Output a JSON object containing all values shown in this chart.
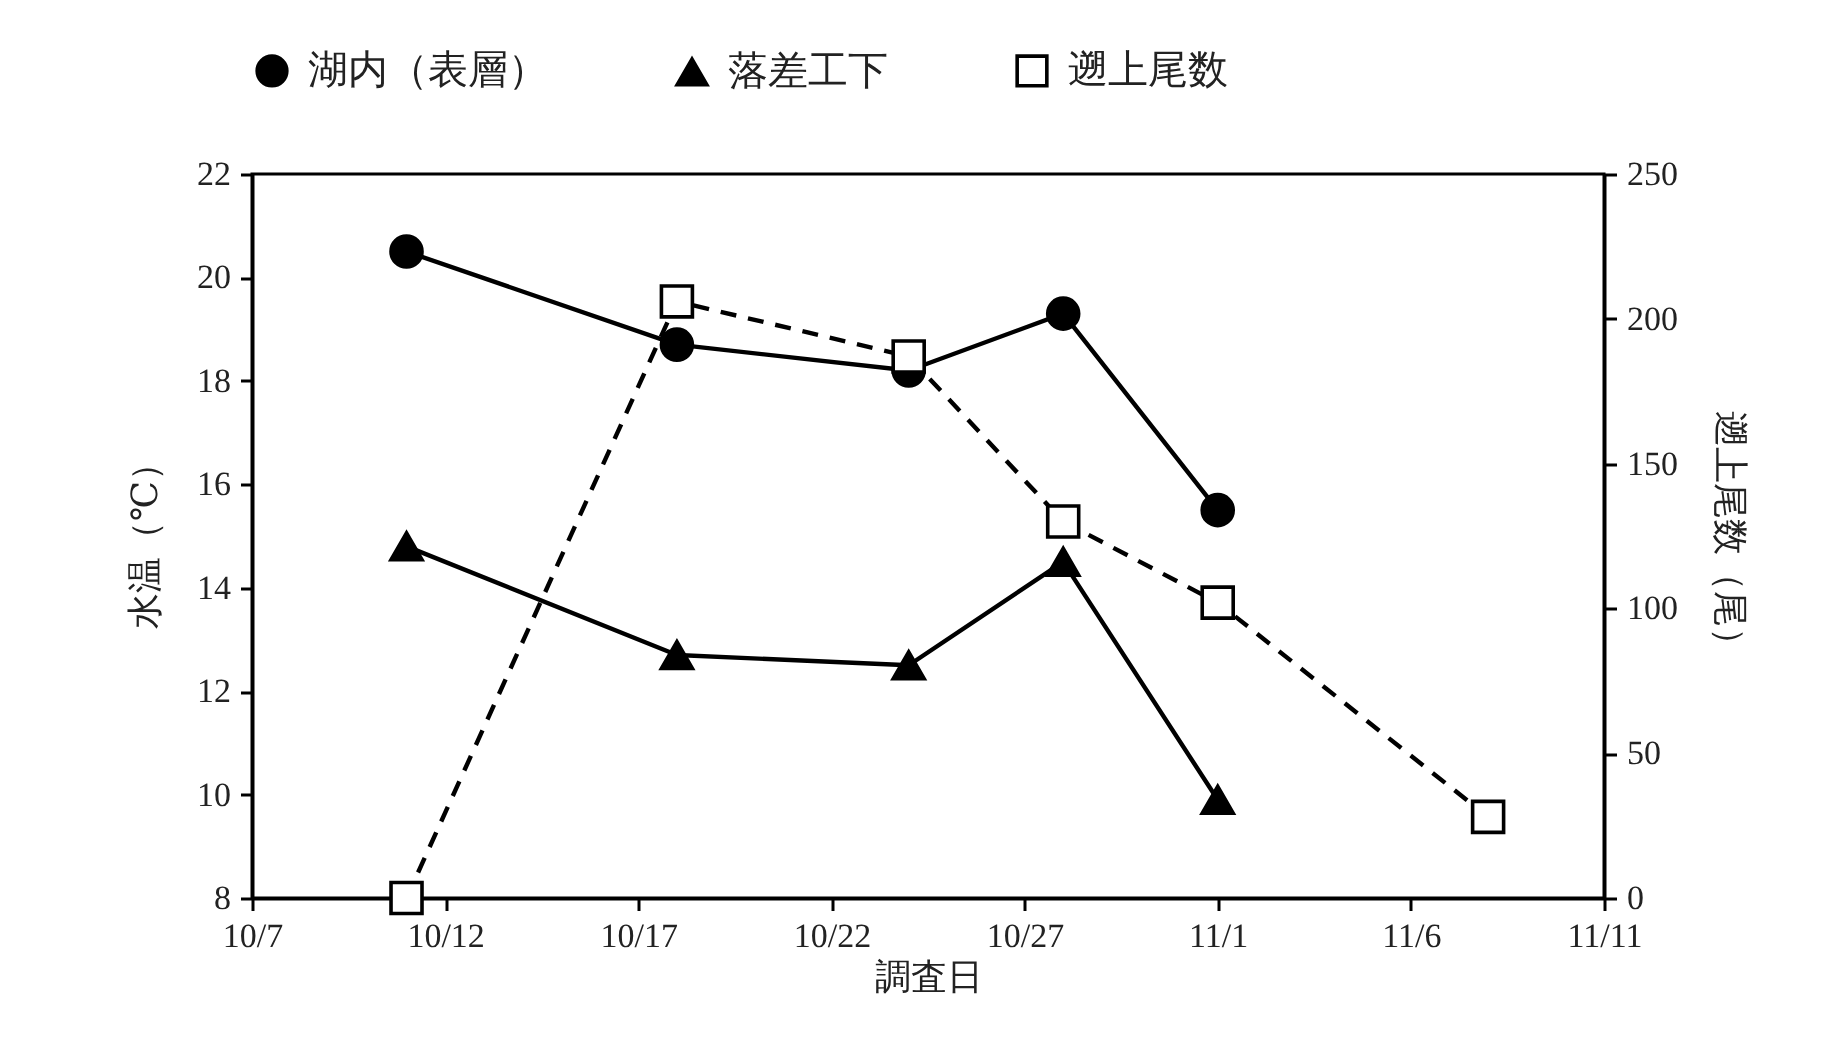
{
  "chart_data": {
    "type": "line",
    "xlabel": "調査日",
    "ylabel": "水温（℃）",
    "y2label": "遡上尾数（尾）",
    "xlim": [
      "--10-07",
      "--11-11"
    ],
    "xticks": [
      {
        "value": "--10-07",
        "label": "10/7"
      },
      {
        "value": "--10-12",
        "label": "10/12"
      },
      {
        "value": "--10-17",
        "label": "10/17"
      },
      {
        "value": "--10-22",
        "label": "10/22"
      },
      {
        "value": "--10-27",
        "label": "10/27"
      },
      {
        "value": "--11-01",
        "label": "11/1"
      },
      {
        "value": "--11-06",
        "label": "11/6"
      },
      {
        "value": "--11-11",
        "label": "11/11"
      }
    ],
    "ylim": [
      8,
      22
    ],
    "yticks": [
      8,
      10,
      12,
      14,
      16,
      18,
      20,
      22
    ],
    "y2lim": [
      0,
      250
    ],
    "y2ticks": [
      0,
      50,
      100,
      150,
      200,
      250
    ],
    "legend": "top",
    "grid": false,
    "series": [
      {
        "name": "湖内（表層）",
        "color": "#000000",
        "marker": "circle",
        "line_style": "solid",
        "x": [
          "--10-11",
          "--10-18",
          "--10-24",
          "--10-28",
          "--11-01"
        ],
        "values": [
          20.5,
          18.7,
          18.2,
          19.3,
          15.5
        ]
      },
      {
        "name": "落差工下",
        "color": "#000000",
        "marker": "triangle",
        "line_style": "solid",
        "x": [
          "--10-11",
          "--10-18",
          "--10-24",
          "--10-28",
          "--11-01"
        ],
        "values": [
          14.8,
          12.7,
          12.5,
          14.5,
          9.9
        ]
      },
      {
        "name": "遡上尾数",
        "color": "#000000",
        "marker": "square",
        "line_style": "dashed",
        "axis": "y2",
        "x": [
          "--10-11",
          "--10-18",
          "--10-24",
          "--10-28",
          "--11-01",
          "--11-08"
        ],
        "values": [
          0,
          206,
          187,
          130,
          102,
          28
        ]
      }
    ]
  }
}
